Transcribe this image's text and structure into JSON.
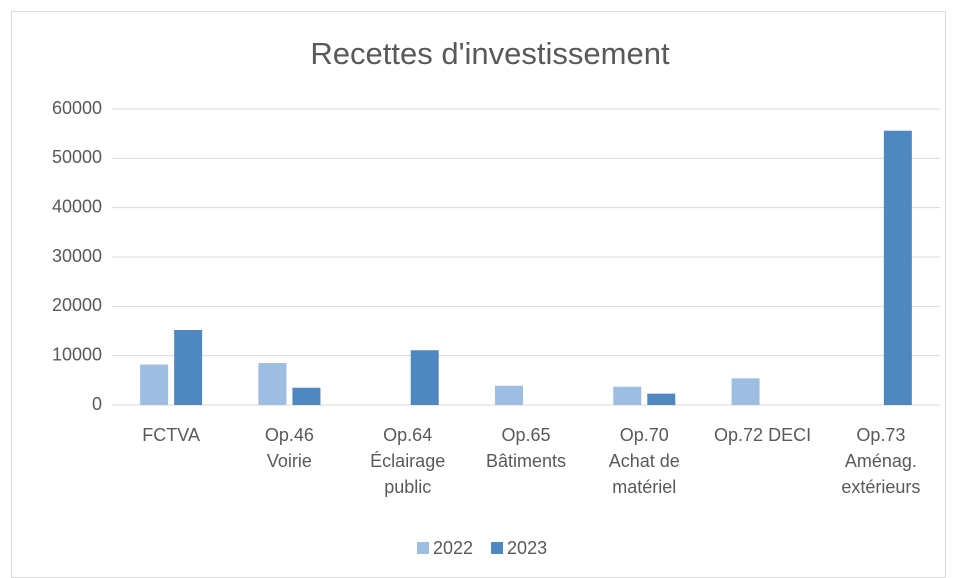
{
  "chart_data": {
    "type": "bar",
    "title": "Recettes d'investissement",
    "categories": [
      "FCTVA",
      "Op.46\nVoirie",
      "Op.64\nÉclairage\npublic",
      "Op.65\nBâtiments",
      "Op.70\nAchat de\nmatériel",
      "Op.72 DECI",
      "Op.73\nAménag.\nextérieurs"
    ],
    "series": [
      {
        "name": "2022",
        "color": "#9dbde3",
        "values": [
          8200,
          8500,
          null,
          3900,
          3700,
          5400,
          null
        ]
      },
      {
        "name": "2023",
        "color": "#4f88c0",
        "values": [
          15200,
          3500,
          11100,
          null,
          2300,
          null,
          55600
        ]
      }
    ],
    "ylim": [
      0,
      60000
    ],
    "yticks": [
      0,
      10000,
      20000,
      30000,
      40000,
      50000,
      60000
    ],
    "grid": true,
    "legend": "bottom"
  }
}
